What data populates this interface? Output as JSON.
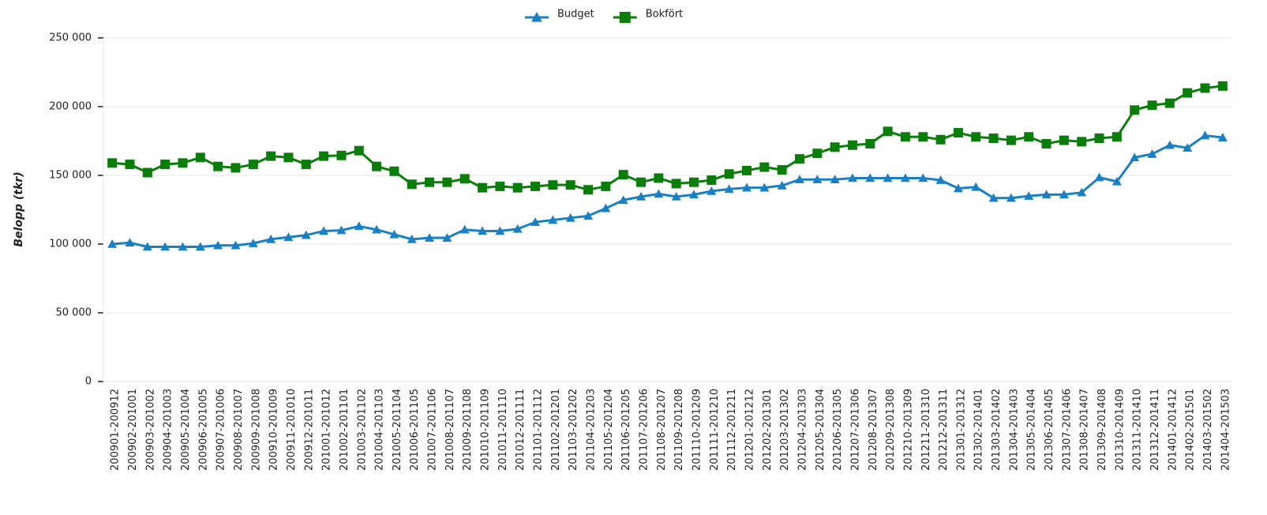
{
  "chart_data": {
    "type": "line",
    "y_label": "Belopp (tkr)",
    "categories": [
      "200901-200912",
      "200902-201001",
      "200903-201002",
      "200904-201003",
      "200905-201004",
      "200906-201005",
      "200907-201006",
      "200908-201007",
      "200909-201008",
      "200910-201009",
      "200911-201010",
      "200912-201011",
      "201001-201012",
      "201002-201101",
      "201003-201102",
      "201004-201103",
      "201005-201104",
      "201006-201105",
      "201007-201106",
      "201008-201107",
      "201009-201108",
      "201010-201109",
      "201011-201110",
      "201012-201111",
      "201101-201112",
      "201102-201201",
      "201103-201202",
      "201104-201203",
      "201105-201204",
      "201106-201205",
      "201107-201206",
      "201108-201207",
      "201109-201208",
      "201110-201209",
      "201111-201210",
      "201112-201211",
      "201201-201212",
      "201202-201301",
      "201203-201302",
      "201204-201303",
      "201205-201304",
      "201206-201305",
      "201207-201306",
      "201208-201307",
      "201209-201308",
      "201210-201309",
      "201211-201310",
      "201212-201311",
      "201301-201312",
      "201302-201401",
      "201303-201402",
      "201304-201403",
      "201305-201404",
      "201306-201405",
      "201307-201406",
      "201308-201407",
      "201309-201408",
      "201310-201409",
      "201311-201410",
      "201312-201411",
      "201401-201412",
      "201402-201501",
      "201403-201502",
      "201404-201503"
    ],
    "series": [
      {
        "name": "Budget",
        "color": "#1a80c4",
        "marker": "triangle",
        "values": [
          100000,
          101000,
          98000,
          98000,
          98000,
          98000,
          99000,
          99000,
          100500,
          103500,
          105000,
          106500,
          109500,
          110000,
          113000,
          110500,
          107000,
          103500,
          104500,
          104500,
          110500,
          109500,
          109500,
          111000,
          116000,
          117500,
          119000,
          120500,
          126000,
          132000,
          134500,
          136500,
          134500,
          136000,
          138500,
          140000,
          141000,
          141000,
          142500,
          147000,
          147000,
          147000,
          148000,
          148000,
          148000,
          148000,
          148000,
          146500,
          140500,
          141500,
          133500,
          133500,
          135000,
          136000,
          136000,
          137500,
          148500,
          145500,
          163000,
          165500,
          172000,
          170000,
          179000,
          177500
        ]
      },
      {
        "name": "Bokfört",
        "color": "#0a7d0a",
        "marker": "square",
        "values": [
          159000,
          158000,
          152000,
          158000,
          159000,
          163000,
          156500,
          155500,
          158000,
          164000,
          163000,
          158000,
          164000,
          164500,
          168000,
          156500,
          153000,
          143500,
          145000,
          145000,
          147500,
          141000,
          142000,
          141000,
          142000,
          143000,
          143000,
          139500,
          142000,
          150500,
          145000,
          148000,
          144000,
          145000,
          146500,
          151000,
          153500,
          156000,
          154000,
          162000,
          166000,
          170500,
          172000,
          173000,
          182000,
          178000,
          178000,
          176000,
          181000,
          178000,
          177000,
          175500,
          178000,
          173000,
          175500,
          174500,
          177000,
          178000,
          197500,
          201000,
          202500,
          210000,
          213500,
          215000
        ]
      }
    ],
    "ylim": [
      0,
      250000
    ],
    "yticks": [
      0,
      {
        "value": 50000,
        "label": "50 000"
      },
      {
        "value": 100000,
        "label": "100 000"
      },
      {
        "value": 150000,
        "label": "150 000"
      },
      {
        "value": 200000,
        "label": "200 000"
      },
      {
        "value": 250000,
        "label": "250 000"
      }
    ],
    "grid": true,
    "legend": "top"
  }
}
